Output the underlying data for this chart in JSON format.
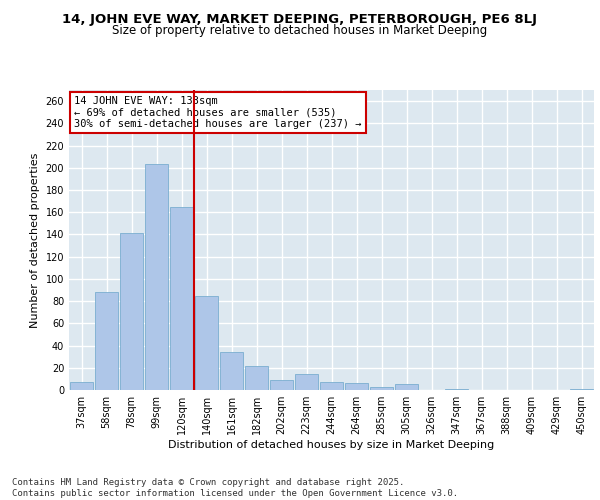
{
  "title1": "14, JOHN EVE WAY, MARKET DEEPING, PETERBOROUGH, PE6 8LJ",
  "title2": "Size of property relative to detached houses in Market Deeping",
  "xlabel": "Distribution of detached houses by size in Market Deeping",
  "ylabel": "Number of detached properties",
  "categories": [
    "37sqm",
    "58sqm",
    "78sqm",
    "99sqm",
    "120sqm",
    "140sqm",
    "161sqm",
    "182sqm",
    "202sqm",
    "223sqm",
    "244sqm",
    "264sqm",
    "285sqm",
    "305sqm",
    "326sqm",
    "347sqm",
    "367sqm",
    "388sqm",
    "409sqm",
    "429sqm",
    "450sqm"
  ],
  "values": [
    7,
    88,
    141,
    203,
    165,
    85,
    34,
    22,
    9,
    14,
    7,
    6,
    3,
    5,
    0,
    1,
    0,
    0,
    0,
    0,
    1
  ],
  "bar_color": "#aec6e8",
  "bar_edge_color": "#7aaed0",
  "background_color": "#dde8f0",
  "grid_color": "#ffffff",
  "vline_x": 4.5,
  "vline_color": "#cc0000",
  "annotation_text": "14 JOHN EVE WAY: 133sqm\n← 69% of detached houses are smaller (535)\n30% of semi-detached houses are larger (237) →",
  "annotation_box_color": "#ffffff",
  "annotation_box_edge_color": "#cc0000",
  "footer_text": "Contains HM Land Registry data © Crown copyright and database right 2025.\nContains public sector information licensed under the Open Government Licence v3.0.",
  "ylim": [
    0,
    270
  ],
  "yticks": [
    0,
    20,
    40,
    60,
    80,
    100,
    120,
    140,
    160,
    180,
    200,
    220,
    240,
    260
  ],
  "title_fontsize": 9.5,
  "subtitle_fontsize": 8.5,
  "axis_label_fontsize": 8,
  "tick_fontsize": 7,
  "annotation_fontsize": 7.5,
  "footer_fontsize": 6.5
}
